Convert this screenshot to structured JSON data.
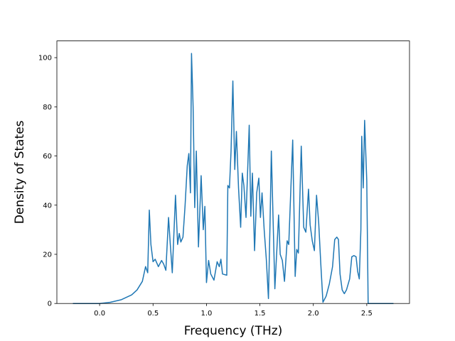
{
  "chart_data": {
    "type": "line",
    "xlabel": "Frequency (THz)",
    "ylabel": "Density of States",
    "xlim": [
      -0.4,
      2.9
    ],
    "ylim": [
      0,
      106.8
    ],
    "xticks": [
      {
        "value": 0,
        "label": "0.0"
      },
      {
        "value": 0.5,
        "label": "0.5"
      },
      {
        "value": 1,
        "label": "1.0"
      },
      {
        "value": 1.5,
        "label": "1.5"
      },
      {
        "value": 2,
        "label": "2.0"
      },
      {
        "value": 2.5,
        "label": "2.5"
      }
    ],
    "yticks": [
      0,
      20,
      40,
      60,
      80,
      100
    ],
    "series": [
      {
        "color": "#1f77b4",
        "x": [
          -0.25,
          0.0,
          0.1,
          0.2,
          0.3,
          0.35,
          0.4,
          0.43,
          0.45,
          0.465,
          0.48,
          0.5,
          0.52,
          0.55,
          0.58,
          0.6,
          0.62,
          0.645,
          0.66,
          0.68,
          0.71,
          0.73,
          0.745,
          0.76,
          0.78,
          0.8,
          0.82,
          0.835,
          0.85,
          0.86,
          0.875,
          0.89,
          0.905,
          0.925,
          0.95,
          0.97,
          0.985,
          1.0,
          1.02,
          1.04,
          1.07,
          1.1,
          1.12,
          1.135,
          1.15,
          1.19,
          1.2,
          1.215,
          1.23,
          1.247,
          1.265,
          1.28,
          1.3,
          1.32,
          1.335,
          1.35,
          1.37,
          1.4,
          1.415,
          1.43,
          1.45,
          1.47,
          1.49,
          1.505,
          1.52,
          1.54,
          1.56,
          1.58,
          1.595,
          1.607,
          1.64,
          1.66,
          1.675,
          1.69,
          1.71,
          1.73,
          1.755,
          1.77,
          1.807,
          1.83,
          1.845,
          1.86,
          1.887,
          1.91,
          1.93,
          1.955,
          1.97,
          1.99,
          2.01,
          2.03,
          2.05,
          2.07,
          2.09,
          2.12,
          2.15,
          2.18,
          2.2,
          2.22,
          2.235,
          2.25,
          2.27,
          2.29,
          2.31,
          2.34,
          2.36,
          2.38,
          2.4,
          2.415,
          2.43,
          2.445,
          2.453,
          2.467,
          2.48,
          2.5,
          2.513,
          2.75
        ],
        "values": [
          0,
          0,
          0.5,
          1.5,
          3.5,
          5.5,
          9,
          15,
          12.5,
          38,
          24,
          17,
          18,
          15,
          17.5,
          16,
          13.5,
          35,
          25,
          12.5,
          44,
          24,
          28.5,
          25,
          27,
          40,
          56,
          61,
          45,
          101.7,
          80,
          39,
          62,
          23,
          52,
          30,
          39.5,
          8.5,
          17.5,
          12,
          9.5,
          17,
          15,
          18,
          12,
          11.5,
          48,
          47,
          62,
          90.5,
          54.5,
          70,
          47,
          31,
          53,
          48,
          35,
          72.5,
          35.5,
          53,
          21.5,
          45,
          51,
          35,
          45,
          30,
          18,
          2,
          33,
          62,
          6,
          23,
          36,
          20,
          17.5,
          9,
          25.5,
          24,
          66.5,
          11,
          22,
          20.5,
          64,
          31,
          29,
          46.5,
          32,
          25.5,
          21.5,
          44,
          33,
          16,
          0.5,
          3,
          8,
          15,
          26,
          27,
          26,
          12,
          5.5,
          4,
          5.5,
          10,
          19,
          19.5,
          19,
          13,
          10,
          30,
          68,
          47,
          74.5,
          50,
          0,
          0
        ]
      }
    ]
  }
}
